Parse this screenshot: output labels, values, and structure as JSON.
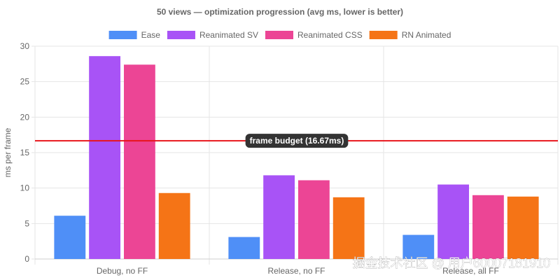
{
  "chart_data": {
    "type": "bar",
    "title": "50 views — optimization progression (avg ms, lower is better)",
    "ylabel": "ms per frame",
    "xlabel": "",
    "ylim": [
      0,
      30
    ],
    "yticks": [
      0,
      5,
      10,
      15,
      20,
      25,
      30
    ],
    "grid": true,
    "legend_position": "top",
    "categories": [
      "Debug, no FF",
      "Release, no FF",
      "Release, all FF"
    ],
    "series": [
      {
        "name": "Ease",
        "color": "#4f8ff7",
        "values": [
          6.1,
          3.1,
          3.4
        ]
      },
      {
        "name": "Reanimated SV",
        "color": "#a853f6",
        "values": [
          28.6,
          11.8,
          10.5
        ]
      },
      {
        "name": "Reanimated CSS",
        "color": "#ec4595",
        "values": [
          27.4,
          11.1,
          9.0
        ]
      },
      {
        "name": "RN Animated",
        "color": "#f57416",
        "values": [
          9.3,
          8.7,
          8.8
        ]
      }
    ],
    "annotations": [
      {
        "type": "hline",
        "value": 16.67,
        "label": "frame budget (16.67ms)",
        "color": "#e8151b"
      }
    ]
  },
  "watermark": "掘金技术社区 @ 用户60007181910"
}
